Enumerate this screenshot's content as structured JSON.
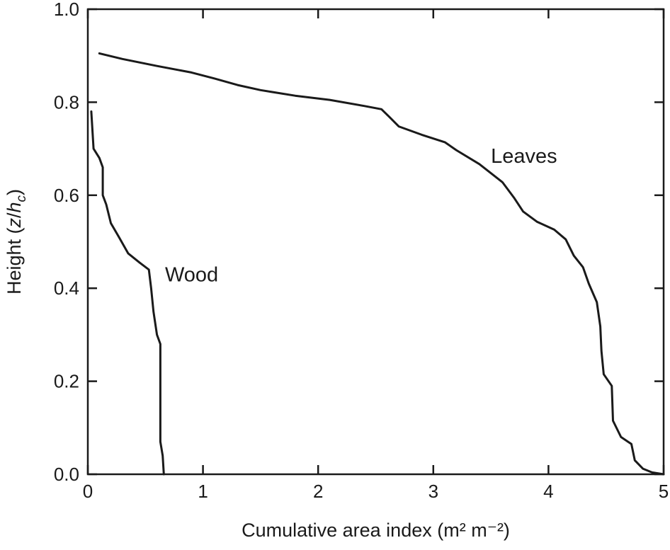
{
  "chart_data": {
    "type": "line",
    "title": "",
    "xlabel": "Cumulative area index (m² m⁻²)",
    "ylabel_parts": {
      "prefix": "Height (",
      "var_z": "z",
      "slash": "/",
      "var_h": "h",
      "subscript": "c",
      "suffix": ")"
    },
    "xlim": [
      0,
      5
    ],
    "ylim": [
      0,
      1
    ],
    "xticks": [
      "0",
      "1",
      "2",
      "3",
      "4",
      "5"
    ],
    "yticks": [
      "0.0",
      "0.2",
      "0.4",
      "0.6",
      "0.8",
      "1.0"
    ],
    "grid": false,
    "legend": "none",
    "series": [
      {
        "name": "Leaves",
        "points": [
          [
            0.1,
            0.905
          ],
          [
            0.3,
            0.893
          ],
          [
            0.6,
            0.878
          ],
          [
            0.9,
            0.864
          ],
          [
            1.1,
            0.851
          ],
          [
            1.3,
            0.837
          ],
          [
            1.5,
            0.826
          ],
          [
            1.8,
            0.814
          ],
          [
            2.1,
            0.805
          ],
          [
            2.4,
            0.792
          ],
          [
            2.55,
            0.785
          ],
          [
            2.62,
            0.768
          ],
          [
            2.7,
            0.748
          ],
          [
            2.9,
            0.73
          ],
          [
            3.1,
            0.714
          ],
          [
            3.2,
            0.697
          ],
          [
            3.4,
            0.667
          ],
          [
            3.6,
            0.628
          ],
          [
            3.7,
            0.595
          ],
          [
            3.78,
            0.565
          ],
          [
            3.9,
            0.543
          ],
          [
            4.05,
            0.526
          ],
          [
            4.15,
            0.505
          ],
          [
            4.22,
            0.47
          ],
          [
            4.3,
            0.445
          ],
          [
            4.35,
            0.41
          ],
          [
            4.42,
            0.37
          ],
          [
            4.45,
            0.318
          ],
          [
            4.46,
            0.265
          ],
          [
            4.48,
            0.215
          ],
          [
            4.55,
            0.19
          ],
          [
            4.56,
            0.115
          ],
          [
            4.63,
            0.08
          ],
          [
            4.72,
            0.065
          ],
          [
            4.75,
            0.03
          ],
          [
            4.82,
            0.012
          ],
          [
            4.9,
            0.004
          ],
          [
            5.0,
            0.0
          ]
        ]
      },
      {
        "name": "Wood",
        "points": [
          [
            0.03,
            0.78
          ],
          [
            0.05,
            0.7
          ],
          [
            0.1,
            0.68
          ],
          [
            0.13,
            0.66
          ],
          [
            0.13,
            0.6
          ],
          [
            0.16,
            0.58
          ],
          [
            0.2,
            0.54
          ],
          [
            0.27,
            0.51
          ],
          [
            0.35,
            0.475
          ],
          [
            0.45,
            0.455
          ],
          [
            0.53,
            0.44
          ],
          [
            0.55,
            0.4
          ],
          [
            0.57,
            0.35
          ],
          [
            0.6,
            0.3
          ],
          [
            0.63,
            0.28
          ],
          [
            0.63,
            0.07
          ],
          [
            0.65,
            0.04
          ],
          [
            0.66,
            0.0
          ]
        ]
      }
    ],
    "annotations": [
      {
        "text": "Leaves",
        "x": 3.5,
        "y": 0.67
      },
      {
        "text": "Wood",
        "x": 0.67,
        "y": 0.415
      }
    ],
    "color": "#1a1a1a"
  }
}
